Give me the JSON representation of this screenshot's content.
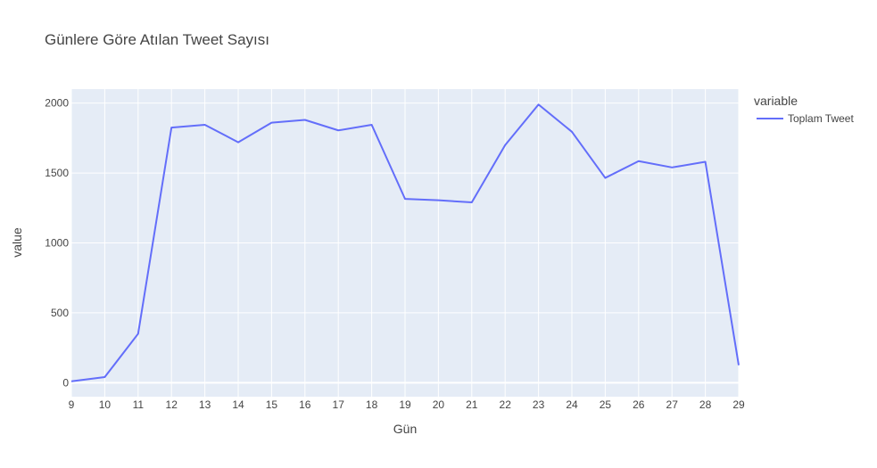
{
  "chart_data": {
    "type": "line",
    "title": "Günlere Göre Atılan Tweet Sayısı",
    "xlabel": "Gün",
    "ylabel": "value",
    "x": [
      9,
      10,
      11,
      12,
      13,
      14,
      15,
      16,
      17,
      18,
      19,
      20,
      21,
      22,
      23,
      24,
      25,
      26,
      27,
      28,
      29
    ],
    "xlim": [
      9,
      29
    ],
    "ylim": [
      -100,
      2100
    ],
    "x_ticks": [
      9,
      10,
      11,
      12,
      13,
      14,
      15,
      16,
      17,
      18,
      19,
      20,
      21,
      22,
      23,
      24,
      25,
      26,
      27,
      28,
      29
    ],
    "y_ticks": [
      0,
      500,
      1000,
      1500,
      2000
    ],
    "grid": true,
    "legend": {
      "title": "variable",
      "placement": "top-right"
    },
    "series": [
      {
        "name": "Toplam Tweet",
        "color": "#636efa",
        "values": [
          10,
          40,
          350,
          1825,
          1845,
          1720,
          1860,
          1880,
          1805,
          1845,
          1315,
          1305,
          1290,
          1700,
          1990,
          1795,
          1465,
          1585,
          1540,
          1580,
          125
        ]
      }
    ],
    "plot_background": "#e5ecf6",
    "gridline_color": "#ffffff"
  }
}
